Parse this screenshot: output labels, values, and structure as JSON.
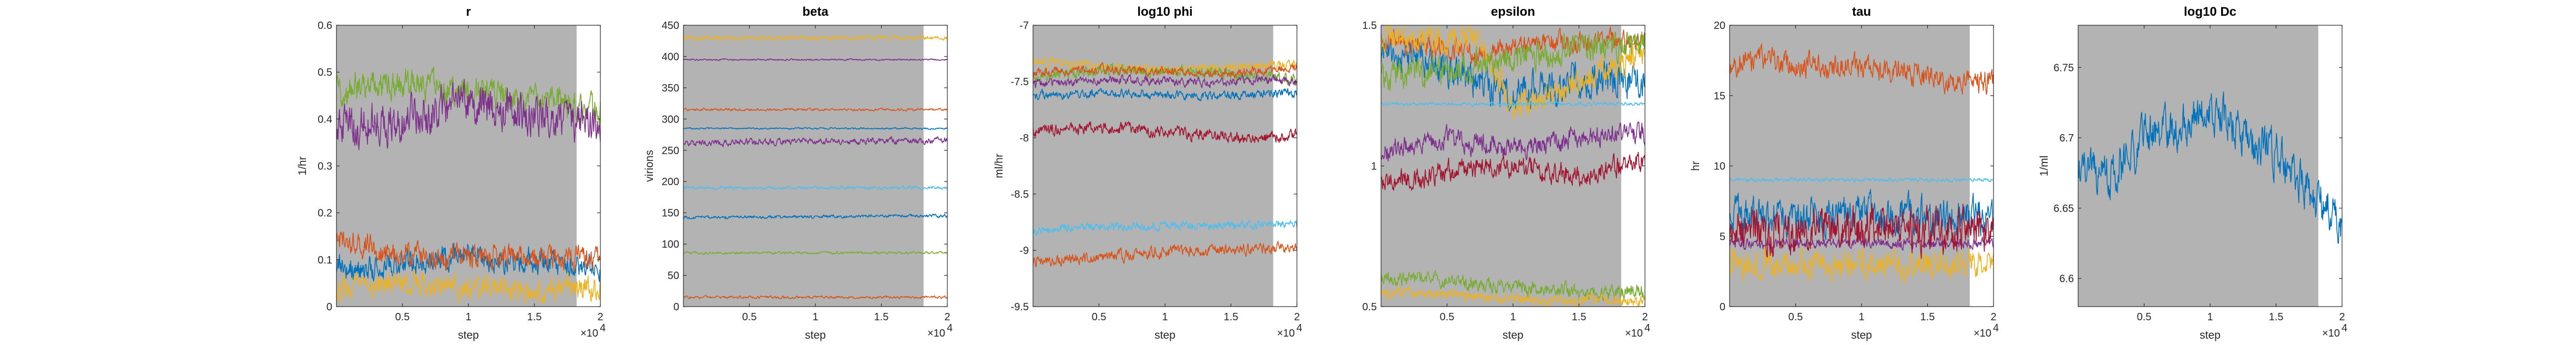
{
  "figure": {
    "background": "#ffffff",
    "burnin_shade": "#b3b3b3",
    "palette": [
      "#0072bd",
      "#d95319",
      "#edb120",
      "#7e2f8e",
      "#77ac30",
      "#4dbeee",
      "#a2142f"
    ]
  },
  "chart_data": [
    {
      "type": "line",
      "title": "r",
      "xlabel": "step",
      "ylabel": "1/hr",
      "x_multiplier": "×10",
      "x_multiplier_exp": "4",
      "xlim": [
        0,
        20000
      ],
      "ylim": [
        0,
        0.6
      ],
      "xticks": [
        5000,
        10000,
        15000,
        20000
      ],
      "xtick_labels": [
        "0.5",
        "1",
        "1.5",
        "2"
      ],
      "yticks": [
        0,
        0.1,
        0.2,
        0.3,
        0.4,
        0.5,
        0.6
      ],
      "ytick_labels": [
        "0",
        "0.1",
        "0.2",
        "0.3",
        "0.4",
        "0.5",
        "0.6"
      ],
      "burnin_end": 18200,
      "series": [
        {
          "color": "#77ac30",
          "values": [
            0.46,
            0.47,
            0.48,
            0.47,
            0.46,
            0.45,
            0.44,
            0.43,
            0.42
          ],
          "noise": 0.025
        },
        {
          "color": "#7e2f8e",
          "values": [
            0.38,
            0.39,
            0.4,
            0.42,
            0.43,
            0.42,
            0.41,
            0.4,
            0.38
          ],
          "noise": 0.035
        },
        {
          "color": "#0072bd",
          "values": [
            0.09,
            0.08,
            0.09,
            0.1,
            0.11,
            0.1,
            0.1,
            0.09,
            0.08
          ],
          "noise": 0.02
        },
        {
          "color": "#d95319",
          "values": [
            0.14,
            0.13,
            0.11,
            0.1,
            0.11,
            0.11,
            0.1,
            0.11,
            0.1
          ],
          "noise": 0.02
        },
        {
          "color": "#edb120",
          "values": [
            0.04,
            0.05,
            0.05,
            0.04,
            0.04,
            0.04,
            0.03,
            0.04,
            0.04
          ],
          "noise": 0.02
        }
      ]
    },
    {
      "type": "line",
      "title": "beta",
      "xlabel": "step",
      "ylabel": "virions",
      "x_multiplier": "×10",
      "x_multiplier_exp": "4",
      "xlim": [
        0,
        20000
      ],
      "ylim": [
        0,
        450
      ],
      "xticks": [
        5000,
        10000,
        15000,
        20000
      ],
      "xtick_labels": [
        "0.5",
        "1",
        "1.5",
        "2"
      ],
      "yticks": [
        0,
        50,
        100,
        150,
        200,
        250,
        300,
        350,
        400,
        450
      ],
      "ytick_labels": [
        "0",
        "50",
        "100",
        "150",
        "200",
        "250",
        "300",
        "350",
        "400",
        "450"
      ],
      "burnin_end": 18200,
      "series": [
        {
          "color": "#edb120",
          "values": [
            430,
            430,
            430,
            430,
            429,
            430,
            430,
            430,
            430
          ],
          "noise": 3
        },
        {
          "color": "#7e2f8e",
          "values": [
            395,
            395,
            395,
            395,
            395,
            395,
            395,
            395,
            395
          ],
          "noise": 1
        },
        {
          "color": "#d95319",
          "values": [
            315,
            315,
            315,
            315,
            315,
            315,
            315,
            315,
            315
          ],
          "noise": 1.5
        },
        {
          "color": "#0072bd",
          "values": [
            285,
            285,
            285,
            285,
            285,
            285,
            285,
            285,
            285
          ],
          "noise": 1
        },
        {
          "color": "#7e2f8e",
          "values": [
            262,
            262,
            263,
            264,
            264,
            264,
            265,
            266,
            266
          ],
          "noise": 4
        },
        {
          "color": "#4dbeee",
          "values": [
            190,
            190,
            190,
            190,
            190,
            190,
            190,
            190,
            190
          ],
          "noise": 2
        },
        {
          "color": "#0072bd",
          "values": [
            143,
            143,
            143,
            143,
            144,
            144,
            145,
            145,
            145
          ],
          "noise": 2
        },
        {
          "color": "#77ac30",
          "values": [
            86,
            86,
            86,
            86,
            86,
            86,
            86,
            86,
            86
          ],
          "noise": 1.5
        },
        {
          "color": "#d95319",
          "values": [
            15,
            15,
            15,
            15,
            15,
            15,
            15,
            15,
            15
          ],
          "noise": 1.5
        }
      ]
    },
    {
      "type": "line",
      "title": "log10 phi",
      "xlabel": "step",
      "ylabel": "ml/hr",
      "x_multiplier": "×10",
      "x_multiplier_exp": "4",
      "xlim": [
        0,
        20000
      ],
      "ylim": [
        -9.5,
        -7
      ],
      "xticks": [
        5000,
        10000,
        15000,
        20000
      ],
      "xtick_labels": [
        "0.5",
        "1",
        "1.5",
        "2"
      ],
      "yticks": [
        -9.5,
        -9,
        -8.5,
        -8,
        -7.5,
        -7
      ],
      "ytick_labels": [
        "-9.5",
        "-9",
        "-8.5",
        "-8",
        "-7.5",
        "-7"
      ],
      "burnin_end": 18200,
      "series": [
        {
          "color": "#edb120",
          "values": [
            -7.32,
            -7.34,
            -7.36,
            -7.38,
            -7.4,
            -7.38,
            -7.37,
            -7.36,
            -7.35
          ],
          "noise": 0.03
        },
        {
          "color": "#77ac30",
          "values": [
            -7.45,
            -7.43,
            -7.41,
            -7.4,
            -7.41,
            -7.42,
            -7.43,
            -7.45,
            -7.47
          ],
          "noise": 0.04
        },
        {
          "color": "#d95319",
          "values": [
            -7.42,
            -7.4,
            -7.39,
            -7.4,
            -7.41,
            -7.43,
            -7.42,
            -7.4,
            -7.38
          ],
          "noise": 0.03
        },
        {
          "color": "#7e2f8e",
          "values": [
            -7.52,
            -7.5,
            -7.49,
            -7.48,
            -7.5,
            -7.51,
            -7.5,
            -7.49,
            -7.5
          ],
          "noise": 0.03
        },
        {
          "color": "#0072bd",
          "values": [
            -7.62,
            -7.62,
            -7.61,
            -7.6,
            -7.62,
            -7.63,
            -7.62,
            -7.61,
            -7.6
          ],
          "noise": 0.03
        },
        {
          "color": "#a2142f",
          "values": [
            -7.95,
            -7.92,
            -7.9,
            -7.93,
            -7.95,
            -7.97,
            -7.99,
            -8.0,
            -7.98
          ],
          "noise": 0.04
        },
        {
          "color": "#4dbeee",
          "values": [
            -8.82,
            -8.8,
            -8.79,
            -8.79,
            -8.79,
            -8.78,
            -8.78,
            -8.77,
            -8.76
          ],
          "noise": 0.03
        },
        {
          "color": "#d95319",
          "values": [
            -9.1,
            -9.08,
            -9.06,
            -9.04,
            -9.02,
            -9.0,
            -8.99,
            -8.98,
            -9.0
          ],
          "noise": 0.04
        }
      ]
    },
    {
      "type": "line",
      "title": "epsilon",
      "xlabel": "step",
      "ylabel": "",
      "x_multiplier": "×10",
      "x_multiplier_exp": "4",
      "xlim": [
        0,
        20000
      ],
      "ylim": [
        0.5,
        1.5
      ],
      "xticks": [
        5000,
        10000,
        15000,
        20000
      ],
      "xtick_labels": [
        "0.5",
        "1",
        "1.5",
        "2"
      ],
      "yticks": [
        0.5,
        1,
        1.5
      ],
      "ytick_labels": [
        "0.5",
        "1",
        "1.5"
      ],
      "burnin_end": 18200,
      "series": [
        {
          "color": "#0072bd",
          "values": [
            1.4,
            1.38,
            1.35,
            1.3,
            1.25,
            1.28,
            1.3,
            1.32,
            1.3
          ],
          "noise": 0.05
        },
        {
          "color": "#d95319",
          "values": [
            1.46,
            1.44,
            1.42,
            1.4,
            1.42,
            1.44,
            1.43,
            1.45,
            1.44
          ],
          "noise": 0.03
        },
        {
          "color": "#edb120",
          "values": [
            1.47,
            1.46,
            1.45,
            1.44,
            1.2,
            1.25,
            1.3,
            1.35,
            1.4
          ],
          "noise": 0.04
        },
        {
          "color": "#77ac30",
          "values": [
            1.3,
            1.32,
            1.34,
            1.36,
            1.38,
            1.4,
            1.42,
            1.43,
            1.44
          ],
          "noise": 0.04
        },
        {
          "color": "#4dbeee",
          "values": [
            1.22,
            1.22,
            1.22,
            1.22,
            1.22,
            1.22,
            1.22,
            1.22,
            1.22
          ],
          "noise": 0.005
        },
        {
          "color": "#7e2f8e",
          "values": [
            1.05,
            1.08,
            1.1,
            1.08,
            1.06,
            1.08,
            1.1,
            1.1,
            1.12
          ],
          "noise": 0.03
        },
        {
          "color": "#a2142f",
          "values": [
            0.95,
            0.96,
            0.98,
            0.99,
            1.0,
            0.98,
            0.97,
            1.0,
            1.02
          ],
          "noise": 0.03
        },
        {
          "color": "#77ac30",
          "values": [
            0.6,
            0.6,
            0.59,
            0.58,
            0.57,
            0.56,
            0.55,
            0.55,
            0.55
          ],
          "noise": 0.02
        },
        {
          "color": "#edb120",
          "values": [
            0.55,
            0.55,
            0.54,
            0.53,
            0.53,
            0.52,
            0.52,
            0.52,
            0.52
          ],
          "noise": 0.015
        }
      ]
    },
    {
      "type": "line",
      "title": "tau",
      "xlabel": "step",
      "ylabel": "hr",
      "x_multiplier": "×10",
      "x_multiplier_exp": "4",
      "xlim": [
        0,
        20000
      ],
      "ylim": [
        0,
        20
      ],
      "xticks": [
        5000,
        10000,
        15000,
        20000
      ],
      "xtick_labels": [
        "0.5",
        "1",
        "1.5",
        "2"
      ],
      "yticks": [
        0,
        5,
        10,
        15,
        20
      ],
      "ytick_labels": [
        "0",
        "5",
        "10",
        "15",
        "20"
      ],
      "burnin_end": 18200,
      "series": [
        {
          "color": "#d95319",
          "values": [
            17.5,
            17.5,
            17.3,
            17.0,
            16.8,
            16.5,
            16.3,
            16.2,
            16.0
          ],
          "noise": 0.7
        },
        {
          "color": "#4dbeee",
          "values": [
            9.0,
            9.0,
            9.0,
            9.0,
            9.0,
            9.0,
            9.0,
            9.0,
            9.0
          ],
          "noise": 0.1
        },
        {
          "color": "#0072bd",
          "values": [
            6.5,
            6.5,
            6.4,
            6.5,
            6.5,
            6.4,
            6.4,
            6.5,
            6.5
          ],
          "noise": 1.0
        },
        {
          "color": "#edb120",
          "values": [
            3.0,
            3.0,
            3.0,
            3.0,
            3.0,
            3.0,
            3.0,
            3.0,
            3.0
          ],
          "noise": 0.8
        },
        {
          "color": "#7e2f8e",
          "values": [
            4.5,
            4.5,
            4.5,
            4.5,
            4.5,
            4.5,
            4.5,
            4.5,
            4.5
          ],
          "noise": 0.3
        },
        {
          "color": "#a2142f",
          "values": [
            5.5,
            5.5,
            5.5,
            5.5,
            5.5,
            5.5,
            5.5,
            5.5,
            5.5
          ],
          "noise": 1.2
        }
      ]
    },
    {
      "type": "line",
      "title": "log10 Dc",
      "xlabel": "step",
      "ylabel": "1/ml",
      "x_multiplier": "×10",
      "x_multiplier_exp": "4",
      "xlim": [
        0,
        20000
      ],
      "ylim": [
        6.58,
        6.78
      ],
      "xticks": [
        5000,
        10000,
        15000,
        20000
      ],
      "xtick_labels": [
        "0.5",
        "1",
        "1.5",
        "2"
      ],
      "yticks": [
        6.6,
        6.65,
        6.7,
        6.75
      ],
      "ytick_labels": [
        "6.6",
        "6.65",
        "6.7",
        "6.75"
      ],
      "burnin_end": 18200,
      "series": [
        {
          "color": "#0072bd",
          "values": [
            6.68,
            6.67,
            6.7,
            6.71,
            6.72,
            6.7,
            6.69,
            6.66,
            6.64
          ],
          "noise": 0.012
        }
      ]
    }
  ]
}
